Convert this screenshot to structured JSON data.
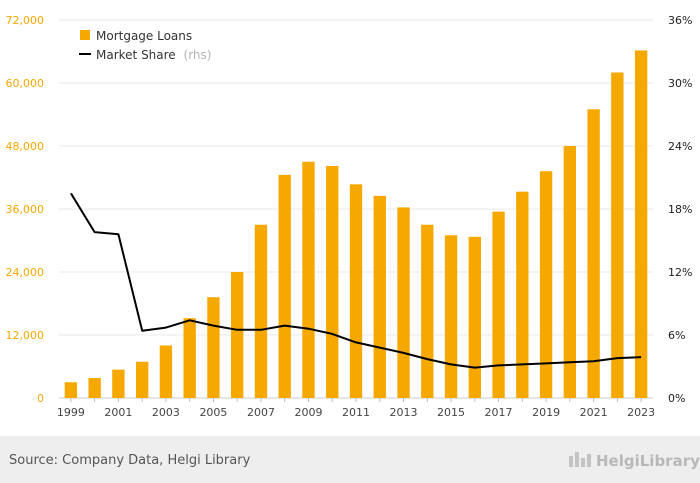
{
  "chart_data": {
    "type": "bar",
    "categories": [
      "1999",
      "2000",
      "2001",
      "2002",
      "2003",
      "2004",
      "2005",
      "2006",
      "2007",
      "2008",
      "2009",
      "2010",
      "2011",
      "2012",
      "2013",
      "2014",
      "2015",
      "2016",
      "2017",
      "2018",
      "2019",
      "2020",
      "2021",
      "2022",
      "2023"
    ],
    "x_tick_labels": [
      "1999",
      "2001",
      "2003",
      "2005",
      "2007",
      "2009",
      "2011",
      "2013",
      "2015",
      "2017",
      "2019",
      "2021",
      "2023"
    ],
    "series": [
      {
        "name": "Mortgage Loans",
        "type": "bar",
        "axis": "left",
        "color": "#f5a800",
        "values": [
          3000,
          3800,
          5400,
          6900,
          10000,
          15200,
          19200,
          24000,
          33000,
          42500,
          45000,
          44200,
          40700,
          38500,
          36300,
          33000,
          31000,
          30700,
          35500,
          39300,
          43200,
          48000,
          55000,
          62000,
          66200
        ]
      },
      {
        "name": "Market Share",
        "note": "(rhs)",
        "type": "line",
        "axis": "right",
        "color": "#000000",
        "values": [
          19.5,
          15.8,
          15.6,
          6.4,
          6.7,
          7.4,
          6.9,
          6.5,
          6.5,
          6.9,
          6.6,
          6.1,
          5.3,
          4.8,
          4.3,
          3.7,
          3.2,
          2.9,
          3.1,
          3.2,
          3.3,
          3.4,
          3.5,
          3.8,
          3.9
        ]
      }
    ],
    "y_left": {
      "ticks": [
        "0",
        "12,000",
        "24,000",
        "36,000",
        "48,000",
        "60,000",
        "72,000"
      ],
      "ylim": [
        0,
        72000
      ],
      "color": "#f5a800"
    },
    "y_right": {
      "ticks": [
        "0%",
        "6%",
        "12%",
        "18%",
        "24%",
        "30%",
        "36%"
      ],
      "ylim": [
        0,
        36
      ]
    },
    "grid": true,
    "legend_position": "top-left"
  },
  "footer": {
    "source": "Source: Company Data, Helgi Library",
    "brand": "HelgiLibrary"
  }
}
